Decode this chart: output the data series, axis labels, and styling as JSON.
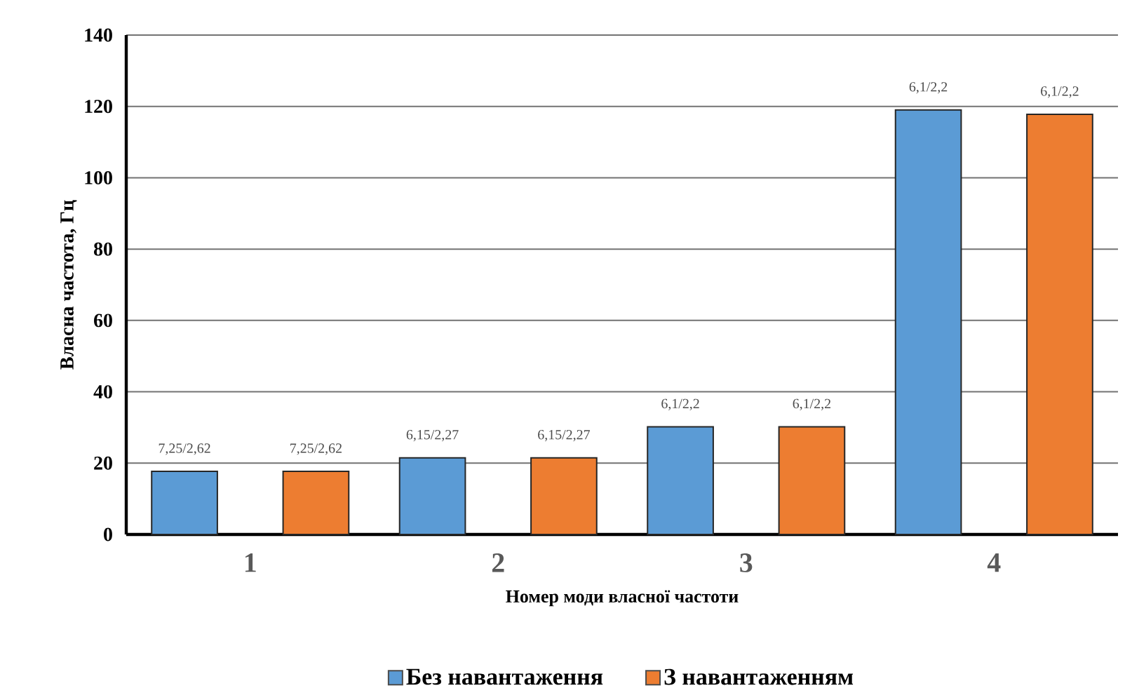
{
  "chart_data": {
    "type": "bar",
    "xlabel": "Номер моди власної частоти",
    "ylabel": "Власна частота, Гц",
    "categories": [
      "1",
      "2",
      "3",
      "4"
    ],
    "series": [
      {
        "name": "Без навантаження",
        "color": "#5b9bd5",
        "values": [
          17.7,
          21.5,
          30.2,
          119.0
        ],
        "value_labels": [
          "7,25/2,62",
          "6,15/2,27",
          "6,1/2,2",
          "6,1/2,2"
        ]
      },
      {
        "name": "З навантаженням",
        "color": "#ed7d31",
        "values": [
          17.7,
          21.5,
          30.2,
          117.8
        ],
        "value_labels": [
          "7,25/2,62",
          "6,15/2,27",
          "6,1/2,2",
          "6,1/2,2"
        ]
      }
    ],
    "ylim": [
      0,
      140
    ],
    "yticks": [
      0,
      20,
      40,
      60,
      80,
      100,
      120,
      140
    ],
    "grid": "y",
    "legend": "bottom"
  }
}
